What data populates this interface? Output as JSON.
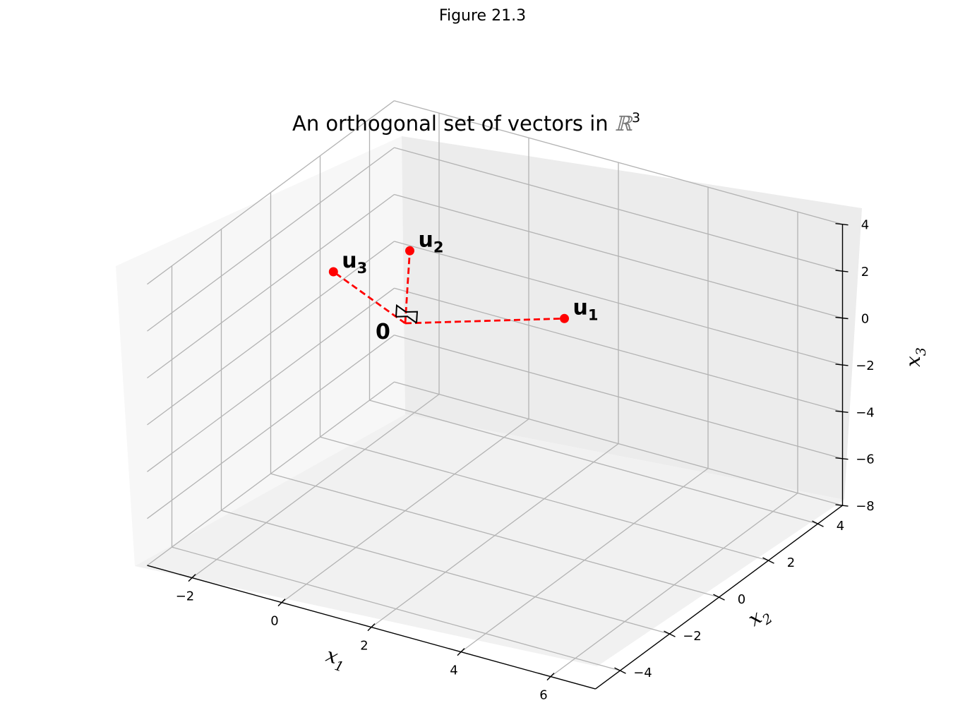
{
  "figure": {
    "label": "Figure 21.3"
  },
  "chart_data": {
    "type": "scatter",
    "projection": "3d",
    "title": "An orthogonal set of vectors in ℝ³",
    "title_text": "An orthogonal set of vectors in ",
    "title_symbol": "ℝ",
    "title_superscript": "3",
    "axes": {
      "x1": {
        "label": "x",
        "label_sub": "1",
        "range": [
          -3,
          7
        ],
        "ticks": [
          -2,
          0,
          2,
          4,
          6
        ]
      },
      "x2": {
        "label": "x",
        "label_sub": "2",
        "range": [
          -5,
          5
        ],
        "ticks": [
          -4,
          -2,
          0,
          2,
          4
        ]
      },
      "x3": {
        "label": "x",
        "label_sub": "3",
        "range": [
          -8,
          4
        ],
        "ticks": [
          -8,
          -6,
          -4,
          -2,
          0,
          2,
          4
        ]
      }
    },
    "grid": true,
    "origin": {
      "label": "0",
      "coords": [
        0,
        0,
        0
      ]
    },
    "points": [
      {
        "label": "u",
        "sub": "1",
        "coords": [
          3,
          1,
          1
        ],
        "color": "#ff0000"
      },
      {
        "label": "u",
        "sub": "2",
        "coords": [
          -1,
          2,
          1
        ],
        "color": "#ff0000"
      },
      {
        "label": "u",
        "sub": "3",
        "coords": [
          -0.5,
          -2,
          3.5
        ],
        "color": "#ff0000"
      }
    ],
    "line_style": "dashed",
    "line_color": "#ff0000",
    "right_angle_marker": true
  }
}
